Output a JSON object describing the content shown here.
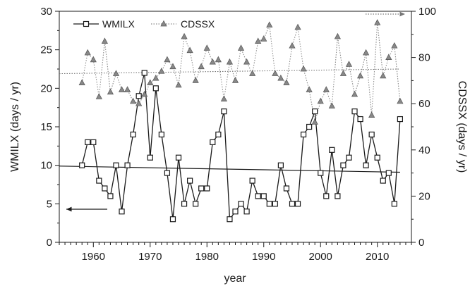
{
  "chart_data": {
    "type": "line",
    "title": "",
    "xlabel": "year",
    "ylabel_left": "WMILX (days / yr)",
    "ylabel_right": "CDSSX (days / yr)",
    "xlim": [
      1954,
      2016
    ],
    "ylim_left": [
      0,
      30
    ],
    "ylim_right": [
      0,
      100
    ],
    "x_ticks": [
      1960,
      1970,
      1980,
      1990,
      2000,
      2010
    ],
    "y_ticks_left": [
      0,
      5,
      10,
      15,
      20,
      25,
      30
    ],
    "y_ticks_right": [
      0,
      20,
      40,
      60,
      80,
      100
    ],
    "grid": false,
    "legend_position": "top-left",
    "x": [
      1958,
      1959,
      1960,
      1961,
      1962,
      1963,
      1964,
      1965,
      1966,
      1967,
      1968,
      1969,
      1970,
      1971,
      1972,
      1973,
      1974,
      1975,
      1976,
      1977,
      1978,
      1979,
      1980,
      1981,
      1982,
      1983,
      1984,
      1985,
      1986,
      1987,
      1988,
      1989,
      1990,
      1991,
      1992,
      1993,
      1994,
      1995,
      1996,
      1997,
      1998,
      1999,
      2000,
      2001,
      2002,
      2003,
      2004,
      2005,
      2006,
      2007,
      2008,
      2009,
      2010,
      2011,
      2012,
      2013,
      2014
    ],
    "series": [
      {
        "name": "WMILX",
        "axis": "left",
        "color": "#1a1a1a",
        "values": [
          10,
          13,
          13,
          8,
          7,
          6,
          10,
          4,
          10,
          14,
          19,
          22,
          11,
          20,
          14,
          9,
          3,
          11,
          5,
          8,
          5,
          7,
          7,
          13,
          14,
          17,
          3,
          4,
          5,
          4,
          8,
          6,
          6,
          5,
          5,
          10,
          7,
          5,
          5,
          14,
          15,
          17,
          9,
          6,
          12,
          6,
          10,
          11,
          17,
          16,
          10,
          14,
          11,
          8,
          9,
          5,
          16
        ],
        "trend": [
          9.9,
          9.1
        ]
      },
      {
        "name": "CDSSX",
        "axis": "right",
        "color": "#888888",
        "values": [
          69,
          82,
          79,
          63,
          87,
          65,
          73,
          66,
          66,
          61,
          60,
          64,
          69,
          71,
          74,
          79,
          76,
          68,
          89,
          83,
          70,
          76,
          84,
          78,
          79,
          62,
          78,
          70,
          84,
          78,
          73,
          87,
          88,
          94,
          73,
          71,
          69,
          85,
          93,
          75,
          66,
          52,
          61,
          66,
          59,
          89,
          73,
          77,
          64,
          72,
          82,
          55,
          95,
          72,
          80,
          85,
          61
        ],
        "trend": [
          73.0,
          75.0
        ]
      }
    ],
    "annotations": [
      {
        "name": "left-axis-arrow",
        "direction": "left",
        "series": "WMILX"
      },
      {
        "name": "right-axis-arrow",
        "direction": "right",
        "series": "CDSSX"
      }
    ]
  }
}
